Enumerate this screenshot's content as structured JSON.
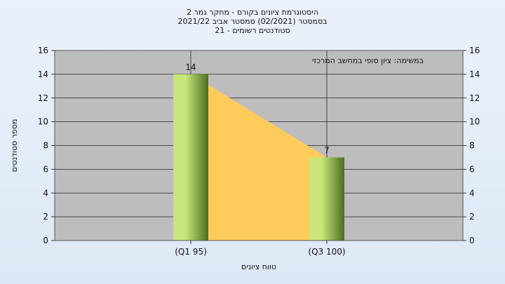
{
  "chart_data": {
    "type": "bar",
    "title_lines": [
      "היסטוגרמת ציונים בקורס - מחקר גמר 2",
      "בסמסטר  (02/2021)  סמסטר אביב 2021/22",
      "סטודנטים רשומים - 21"
    ],
    "categories": [
      "(Q1 95)",
      "(Q3 100)"
    ],
    "values": [
      14,
      7
    ],
    "data_labels": [
      "14",
      "7"
    ],
    "xlabel": "טווח ציונים",
    "ylabel": "מספר סטודנטים",
    "ylim": [
      0,
      16
    ],
    "yticks": [
      "0",
      "2",
      "4",
      "6",
      "8",
      "10",
      "12",
      "14",
      "16"
    ],
    "annotation": "במשימה: ציון סופי במחשב המרכזי",
    "grid": true,
    "secondary_y_axis": true,
    "colors": {
      "plot_bg": "#bdbdbd",
      "bar_light": "#c8e67a",
      "bar_dark": "#4d6e1f",
      "area_fill": "#ffcc5c"
    }
  }
}
